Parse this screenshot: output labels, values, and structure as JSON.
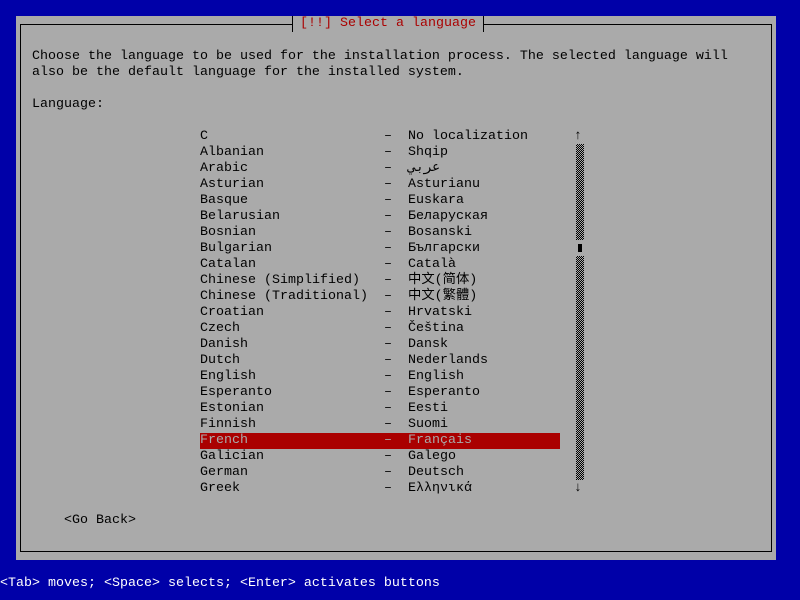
{
  "title": "[!!] Select a language",
  "description_line1": "Choose the language to be used for the installation process. The selected language will",
  "description_line2": "also be the default language for the installed system.",
  "list_label": "Language:",
  "separator": "–",
  "languages": [
    {
      "name": "C",
      "native": "No localization"
    },
    {
      "name": "Albanian",
      "native": "Shqip"
    },
    {
      "name": "Arabic",
      "native": "عربي"
    },
    {
      "name": "Asturian",
      "native": "Asturianu"
    },
    {
      "name": "Basque",
      "native": "Euskara"
    },
    {
      "name": "Belarusian",
      "native": "Беларуская"
    },
    {
      "name": "Bosnian",
      "native": "Bosanski"
    },
    {
      "name": "Bulgarian",
      "native": "Български"
    },
    {
      "name": "Catalan",
      "native": "Català"
    },
    {
      "name": "Chinese (Simplified)",
      "native": "中文(简体)"
    },
    {
      "name": "Chinese (Traditional)",
      "native": "中文(繁體)"
    },
    {
      "name": "Croatian",
      "native": "Hrvatski"
    },
    {
      "name": "Czech",
      "native": "Čeština"
    },
    {
      "name": "Danish",
      "native": "Dansk"
    },
    {
      "name": "Dutch",
      "native": "Nederlands"
    },
    {
      "name": "English",
      "native": "English"
    },
    {
      "name": "Esperanto",
      "native": "Esperanto"
    },
    {
      "name": "Estonian",
      "native": "Eesti"
    },
    {
      "name": "Finnish",
      "native": "Suomi"
    },
    {
      "name": "French",
      "native": "Français",
      "selected": true
    },
    {
      "name": "Galician",
      "native": "Galego"
    },
    {
      "name": "German",
      "native": "Deutsch"
    },
    {
      "name": "Greek",
      "native": "Ελληνικά"
    }
  ],
  "scroll_up": "↑",
  "scroll_down": "↓",
  "go_back": "<Go Back>",
  "status_bar": "<Tab> moves; <Space> selects; <Enter> activates buttons",
  "colors": {
    "background": "#0000a8",
    "dialog": "#aaaaaa",
    "accent": "#aa0000"
  }
}
